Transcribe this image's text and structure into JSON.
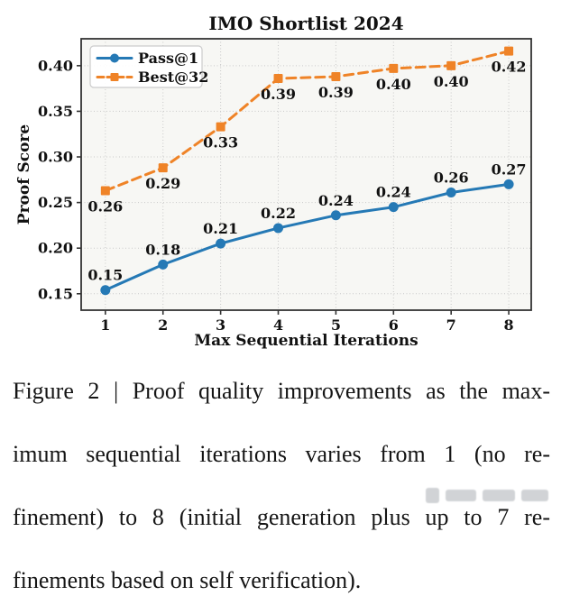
{
  "figure": {
    "caption": {
      "lines": [
        "Figure 2 | Proof quality improvements as the max-",
        "imum sequential iterations varies from 1 (no re-",
        "finement) to 8 (initial generation plus up to 7 re-",
        "finements based on self verification)."
      ]
    }
  },
  "chart_data": {
    "type": "line",
    "title": "IMO Shortlist 2024",
    "xlabel": "Max Sequential Iterations",
    "ylabel": "Proof Score",
    "x": [
      1,
      2,
      3,
      4,
      5,
      6,
      7,
      8
    ],
    "x_tick_labels": [
      "1",
      "2",
      "3",
      "4",
      "5",
      "6",
      "7",
      "8"
    ],
    "y_tick_values": [
      0.15,
      0.2,
      0.25,
      0.3,
      0.35,
      0.4
    ],
    "y_tick_labels": [
      "0.15",
      "0.20",
      "0.25",
      "0.30",
      "0.35",
      "0.40"
    ],
    "xlim": [
      0.58,
      8.39
    ],
    "ylim": [
      0.132,
      0.4295
    ],
    "grid": true,
    "legend": {
      "position": "upper left"
    },
    "series": [
      {
        "name": "Pass@1",
        "color": "#2579b5",
        "line_style": "solid",
        "marker": "circle",
        "label_side": "above",
        "values": [
          0.15,
          0.18,
          0.21,
          0.22,
          0.24,
          0.24,
          0.26,
          0.27
        ],
        "values_plot": [
          0.154,
          0.182,
          0.205,
          0.222,
          0.236,
          0.245,
          0.261,
          0.27
        ],
        "point_labels": [
          "0.15",
          "0.18",
          "0.21",
          "0.22",
          "0.24",
          "0.24",
          "0.26",
          "0.27"
        ]
      },
      {
        "name": "Best@32",
        "color": "#ef8327",
        "line_style": "dashed",
        "marker": "square",
        "label_side": "below",
        "values": [
          0.26,
          0.29,
          0.33,
          0.39,
          0.39,
          0.4,
          0.4,
          0.42
        ],
        "values_plot": [
          0.263,
          0.288,
          0.333,
          0.386,
          0.388,
          0.397,
          0.4,
          0.416
        ],
        "point_labels": [
          "0.26",
          "0.29",
          "0.33",
          "0.39",
          "0.39",
          "0.40",
          "0.40",
          "0.42"
        ]
      }
    ],
    "colors": {
      "plot_bg": "#f7f7f4",
      "grid": "#c9c9c9",
      "spine": "#333333",
      "text": "#111111",
      "legend_border": "#cccccc",
      "legend_bg": "#ffffff"
    }
  }
}
